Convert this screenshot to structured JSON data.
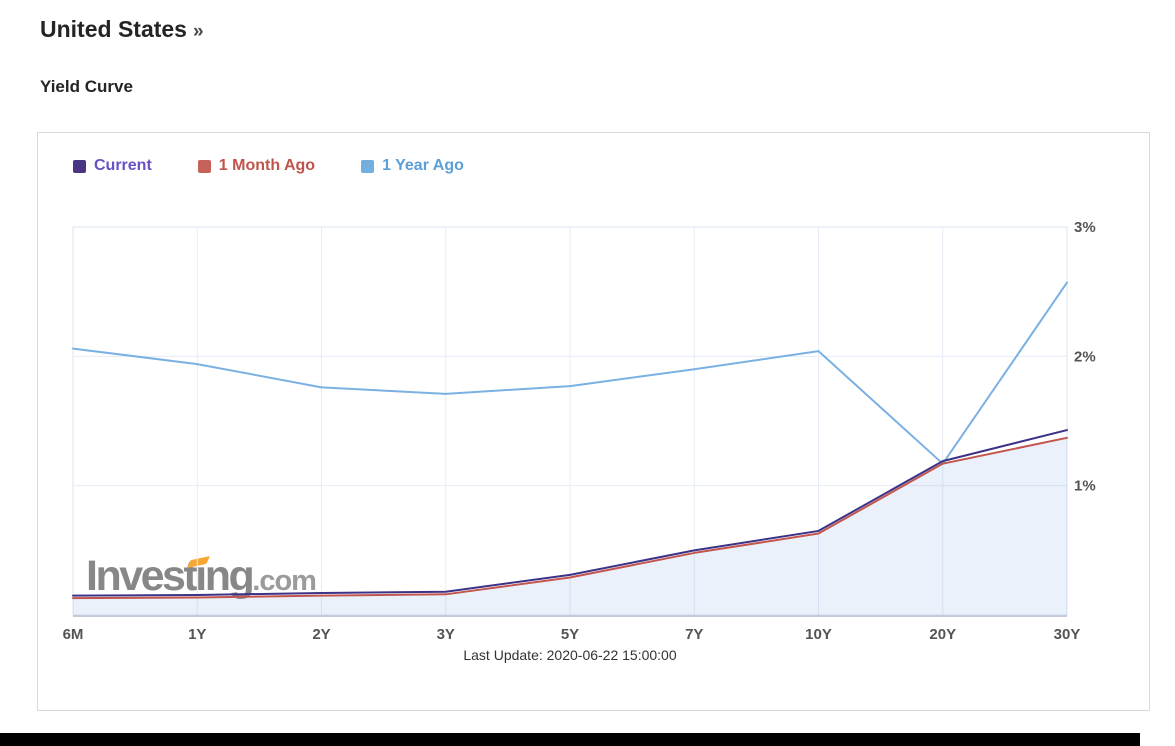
{
  "header": {
    "title": "United States",
    "more_arrow": "»",
    "subtitle": "Yield Curve"
  },
  "chart_data": {
    "type": "line",
    "title": "Yield Curve",
    "categories": [
      "6M",
      "1Y",
      "2Y",
      "3Y",
      "5Y",
      "7Y",
      "10Y",
      "20Y",
      "30Y"
    ],
    "series": [
      {
        "name": "Current",
        "line_color": "#3c3287",
        "swatch_color": "#4b3484",
        "label_color": "#6a50c4",
        "values": [
          0.15,
          0.155,
          0.17,
          0.18,
          0.31,
          0.5,
          0.65,
          1.19,
          1.43
        ]
      },
      {
        "name": "1 Month Ago",
        "line_color": "#c2564f",
        "swatch_color": "#c7615b",
        "label_color": "#bf544d",
        "area_fill": "rgba(125,168,222,0.16)",
        "values": [
          0.13,
          0.135,
          0.15,
          0.16,
          0.29,
          0.48,
          0.63,
          1.17,
          1.37
        ]
      },
      {
        "name": "1 Year Ago",
        "line_color": "#7ab1e2",
        "swatch_color": "#72aede",
        "label_color": "#5b9fd8",
        "values": [
          2.06,
          1.94,
          1.76,
          1.71,
          1.77,
          1.9,
          2.04,
          1.17,
          2.57
        ]
      }
    ],
    "ylim": [
      0,
      3
    ],
    "yaxis_ticks": [
      {
        "value": 1,
        "label": "1%"
      },
      {
        "value": 2,
        "label": "2%"
      },
      {
        "value": 3,
        "label": "3%"
      }
    ],
    "yaxis_position": "right",
    "xlabel": "",
    "ylabel": "",
    "grid": true,
    "legend_position": "top-left"
  },
  "footer": {
    "last_update": "Last Update: 2020-06-22 15:00:00"
  },
  "watermark": {
    "brand": "Investing",
    "suffix": ".com"
  },
  "colors": {
    "grid": "#e6ebf7",
    "plot_border": "#dbe3f1",
    "axis_line": "#c3cbdd",
    "axis_label": "#545454",
    "title": "#242424",
    "panel_border": "#d9d9d9",
    "page_bg": "#ffffff",
    "bottom_bar": "#000000",
    "watermark_accent": "#f7a834"
  }
}
